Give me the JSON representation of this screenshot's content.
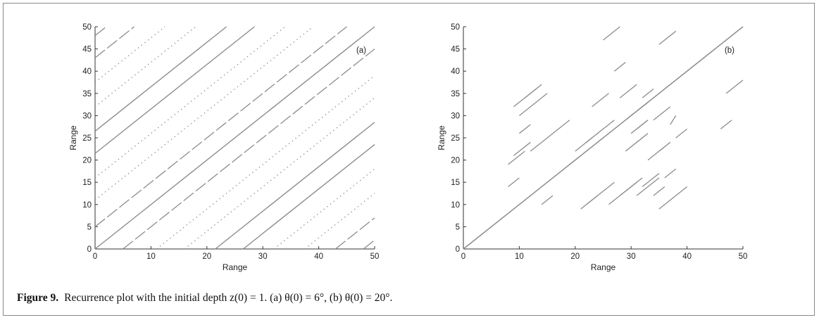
{
  "caption": {
    "label": "Figure 9.",
    "text": "Recurrence plot with the initial depth z(0) = 1. (a) θ(0) = 6°, (b) θ(0) = 20°."
  },
  "colors": {
    "line": "#8c8c8c",
    "axis": "#333333",
    "frame": "#8a8a8a"
  },
  "chart_data": [
    {
      "type": "scatter",
      "panel": "(a)",
      "annotation": "(a)",
      "xlabel": "Range",
      "ylabel": "Range",
      "xlim": [
        0,
        50
      ],
      "ylim": [
        0,
        50
      ],
      "xticks": [
        0,
        10,
        20,
        30,
        40,
        50
      ],
      "yticks": [
        0,
        5,
        10,
        15,
        20,
        25,
        30,
        35,
        40,
        45,
        50
      ],
      "grid": false,
      "diagonal_offsets_solid": [
        -26.5,
        -21.5,
        0,
        21.5,
        26.5
      ],
      "diagonal_offsets_dashed": [
        -48,
        -43,
        -5,
        5,
        43,
        48
      ],
      "diagonal_offsets_dotted": [
        -37.5,
        -32,
        -16,
        -11,
        11,
        16,
        32,
        37.5
      ]
    },
    {
      "type": "scatter",
      "panel": "(b)",
      "annotation": "(b)",
      "xlabel": "Range",
      "ylabel": "Range",
      "xlim": [
        0,
        50
      ],
      "ylim": [
        0,
        50
      ],
      "xticks": [
        0,
        10,
        20,
        30,
        40,
        50
      ],
      "yticks": [
        0,
        5,
        10,
        15,
        20,
        25,
        30,
        35,
        40,
        45,
        50
      ],
      "grid": false,
      "main_diagonal": true,
      "segments": [
        [
          [
            9,
            32
          ],
          [
            13,
            36
          ]
        ],
        [
          [
            11,
            34
          ],
          [
            14,
            37
          ]
        ],
        [
          [
            10,
            30
          ],
          [
            15,
            35
          ]
        ],
        [
          [
            12,
            22
          ],
          [
            19,
            29
          ]
        ],
        [
          [
            8,
            19
          ],
          [
            11,
            22
          ]
        ],
        [
          [
            9,
            21
          ],
          [
            12,
            24
          ]
        ],
        [
          [
            8,
            14
          ],
          [
            10,
            16
          ]
        ],
        [
          [
            14,
            10
          ],
          [
            16,
            12
          ]
        ],
        [
          [
            20,
            22
          ],
          [
            23,
            25
          ]
        ],
        [
          [
            21,
            9
          ],
          [
            24,
            12
          ]
        ],
        [
          [
            22,
            10
          ],
          [
            27,
            15
          ]
        ],
        [
          [
            22,
            24
          ],
          [
            27,
            29
          ]
        ],
        [
          [
            23,
            32
          ],
          [
            26,
            35
          ]
        ],
        [
          [
            26,
            10
          ],
          [
            32,
            16
          ]
        ],
        [
          [
            27,
            40
          ],
          [
            29,
            42
          ]
        ],
        [
          [
            28,
            34
          ],
          [
            31,
            37
          ]
        ],
        [
          [
            28,
            12
          ],
          [
            31,
            15
          ]
        ],
        [
          [
            29,
            22
          ],
          [
            33,
            26
          ]
        ],
        [
          [
            30,
            26
          ],
          [
            33,
            29
          ]
        ],
        [
          [
            31,
            27
          ],
          [
            33,
            29
          ]
        ],
        [
          [
            31,
            31
          ],
          [
            33,
            33
          ]
        ],
        [
          [
            31,
            12
          ],
          [
            35,
            16
          ]
        ],
        [
          [
            32,
            14
          ],
          [
            35,
            17
          ]
        ],
        [
          [
            33,
            20
          ],
          [
            36,
            23
          ]
        ],
        [
          [
            34,
            12
          ],
          [
            36,
            14
          ]
        ],
        [
          [
            35,
            9
          ],
          [
            40,
            14
          ]
        ],
        [
          [
            36,
            16
          ],
          [
            38,
            18
          ]
        ],
        [
          [
            35,
            22
          ],
          [
            37,
            24
          ]
        ],
        [
          [
            37,
            28
          ],
          [
            38,
            30
          ]
        ],
        [
          [
            34,
            29
          ],
          [
            37,
            32
          ]
        ],
        [
          [
            35,
            46
          ],
          [
            38,
            49
          ]
        ],
        [
          [
            46,
            27
          ],
          [
            48,
            29
          ]
        ],
        [
          [
            47,
            35
          ],
          [
            50,
            38
          ]
        ],
        [
          [
            25,
            47
          ],
          [
            28,
            50
          ]
        ],
        [
          [
            32,
            34
          ],
          [
            34,
            36
          ]
        ],
        [
          [
            19,
            19
          ],
          [
            21,
            21
          ]
        ],
        [
          [
            38,
            25
          ],
          [
            40,
            27
          ]
        ],
        [
          [
            10,
            26
          ],
          [
            12,
            28
          ]
        ]
      ]
    }
  ]
}
